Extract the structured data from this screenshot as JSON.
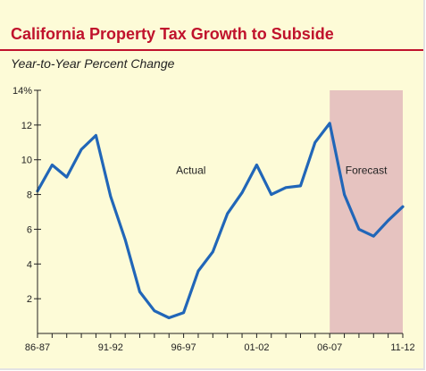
{
  "chart_data": {
    "type": "line",
    "title": "California Property Tax Growth to Subside",
    "subtitle": "Year-to-Year Percent Change",
    "y_ticks": [
      "2",
      "4",
      "6",
      "8",
      "10",
      "12",
      "14%"
    ],
    "y_tick_values": [
      2,
      4,
      6,
      8,
      10,
      12,
      14
    ],
    "x_tick_labels": [
      "86-87",
      "91-92",
      "96-97",
      "01-02",
      "06-07",
      "11-12"
    ],
    "x_tick_positions": [
      0,
      5,
      10,
      15,
      20,
      25
    ],
    "ylim": [
      0,
      14
    ],
    "xlim": [
      0,
      25
    ],
    "series": [
      {
        "values": [
          8.2,
          9.7,
          9.0,
          10.6,
          11.4,
          7.9,
          5.4,
          2.4,
          1.3,
          0.9,
          1.2,
          3.6,
          4.7,
          6.9,
          8.1,
          9.7,
          8.0,
          8.4,
          8.5,
          11.0,
          12.1,
          8.0,
          6.0,
          5.6,
          6.5,
          7.3
        ],
        "color": "#2166b8"
      }
    ],
    "annotations": [
      {
        "text": "Actual",
        "x": 10.5,
        "y": 9.2
      },
      {
        "text": "Forecast",
        "x": 22.5,
        "y": 9.2
      }
    ],
    "forecast_region": {
      "x_start": 20,
      "x_end": 25,
      "color": "#e6c3c0"
    },
    "grid": false
  }
}
